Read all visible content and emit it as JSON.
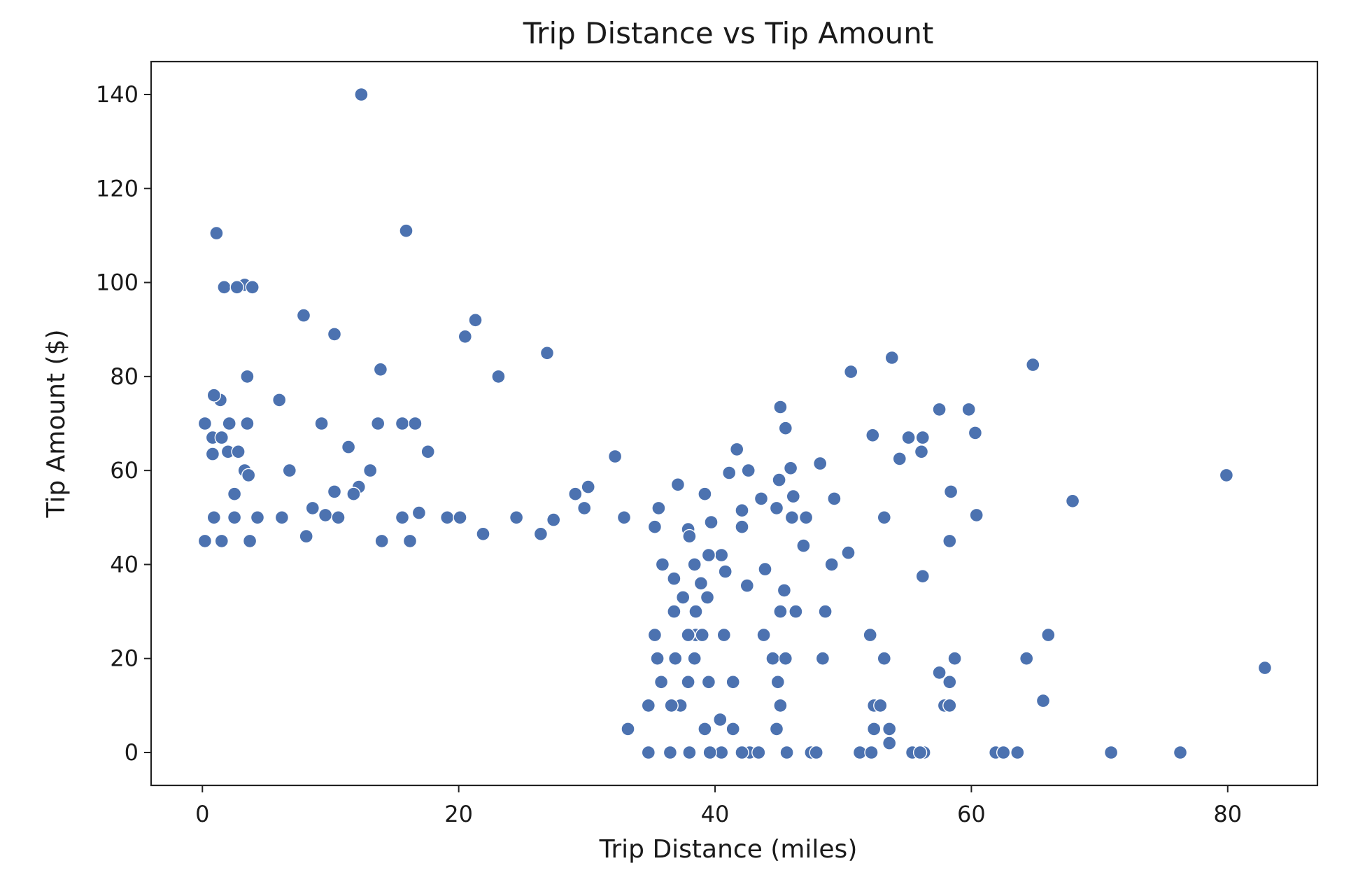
{
  "chart_data": {
    "type": "scatter",
    "title": "Trip Distance vs Tip Amount",
    "xlabel": "Trip Distance (miles)",
    "ylabel": "Tip Amount ($)",
    "xlim": [
      -4,
      87
    ],
    "ylim": [
      -7,
      147
    ],
    "x_ticks": [
      0,
      20,
      40,
      60,
      80
    ],
    "y_ticks": [
      0,
      20,
      40,
      60,
      80,
      100,
      120,
      140
    ],
    "grid": false,
    "legend": "none",
    "series": [
      {
        "color": "#4c72b0",
        "points": [
          [
            12.4,
            140
          ],
          [
            1.1,
            110.5
          ],
          [
            15.9,
            111
          ],
          [
            1.7,
            99
          ],
          [
            3.3,
            99.5
          ],
          [
            3.9,
            99
          ],
          [
            2.7,
            99
          ],
          [
            7.9,
            93
          ],
          [
            10.3,
            89
          ],
          [
            20.5,
            88.5
          ],
          [
            21.3,
            92
          ],
          [
            26.9,
            85
          ],
          [
            23.1,
            80
          ],
          [
            13.9,
            81.5
          ],
          [
            3.5,
            80
          ],
          [
            53.8,
            84
          ],
          [
            64.8,
            82.5
          ],
          [
            50.6,
            81
          ],
          [
            1.4,
            75
          ],
          [
            6.0,
            75
          ],
          [
            0.9,
            76
          ],
          [
            0.2,
            70
          ],
          [
            2.1,
            70
          ],
          [
            3.5,
            70
          ],
          [
            9.3,
            70
          ],
          [
            13.7,
            70
          ],
          [
            15.6,
            70
          ],
          [
            16.6,
            70
          ],
          [
            45.1,
            73.5
          ],
          [
            57.5,
            73
          ],
          [
            59.8,
            73
          ],
          [
            45.5,
            69
          ],
          [
            52.3,
            67.5
          ],
          [
            55.1,
            67
          ],
          [
            56.2,
            67
          ],
          [
            60.3,
            68
          ],
          [
            0.8,
            67
          ],
          [
            1.5,
            67
          ],
          [
            2.0,
            64
          ],
          [
            2.8,
            64
          ],
          [
            0.8,
            63.5
          ],
          [
            11.4,
            65
          ],
          [
            17.6,
            64
          ],
          [
            32.2,
            63
          ],
          [
            41.7,
            64.5
          ],
          [
            54.4,
            62.5
          ],
          [
            56.1,
            64
          ],
          [
            3.3,
            60
          ],
          [
            3.6,
            59
          ],
          [
            6.8,
            60
          ],
          [
            13.1,
            60
          ],
          [
            79.9,
            59
          ],
          [
            67.9,
            53.5
          ],
          [
            48.2,
            61.5
          ],
          [
            42.6,
            60
          ],
          [
            41.1,
            59.5
          ],
          [
            45.9,
            60.5
          ],
          [
            58.4,
            55.5
          ],
          [
            29.1,
            55
          ],
          [
            30.1,
            56.5
          ],
          [
            37.1,
            57
          ],
          [
            39.2,
            55
          ],
          [
            45.0,
            58
          ],
          [
            49.3,
            54
          ],
          [
            2.5,
            55
          ],
          [
            12.2,
            56.5
          ],
          [
            10.3,
            55.5
          ],
          [
            11.8,
            55
          ],
          [
            16.9,
            51
          ],
          [
            24.5,
            50
          ],
          [
            29.8,
            52
          ],
          [
            35.6,
            52
          ],
          [
            42.1,
            51.5
          ],
          [
            43.6,
            54
          ],
          [
            44.8,
            52
          ],
          [
            46.1,
            54.5
          ],
          [
            47.1,
            50
          ],
          [
            53.2,
            50
          ],
          [
            60.4,
            50.5
          ],
          [
            46.0,
            50
          ],
          [
            0.9,
            50
          ],
          [
            2.5,
            50
          ],
          [
            4.3,
            50
          ],
          [
            6.2,
            50
          ],
          [
            8.6,
            52
          ],
          [
            9.6,
            50.5
          ],
          [
            10.6,
            50
          ],
          [
            15.6,
            50
          ],
          [
            19.1,
            50
          ],
          [
            20.1,
            50
          ],
          [
            21.9,
            46.5
          ],
          [
            27.4,
            49.5
          ],
          [
            32.9,
            50
          ],
          [
            37.9,
            47.5
          ],
          [
            39.7,
            49
          ],
          [
            42.1,
            48
          ],
          [
            46.9,
            44
          ],
          [
            49.1,
            40
          ],
          [
            50.4,
            42.5
          ],
          [
            56.2,
            37.5
          ],
          [
            58.3,
            45
          ],
          [
            0.2,
            45
          ],
          [
            1.5,
            45
          ],
          [
            3.7,
            45
          ],
          [
            8.1,
            46
          ],
          [
            14.0,
            45
          ],
          [
            16.2,
            45
          ],
          [
            26.4,
            46.5
          ],
          [
            35.3,
            48
          ],
          [
            38.0,
            46
          ],
          [
            40.5,
            42
          ],
          [
            43.9,
            39
          ],
          [
            42.5,
            35.5
          ],
          [
            45.4,
            34.5
          ],
          [
            46.3,
            30
          ],
          [
            48.6,
            30
          ],
          [
            45.1,
            30
          ],
          [
            43.8,
            25
          ],
          [
            52.1,
            25
          ],
          [
            66.0,
            25
          ],
          [
            44.5,
            20
          ],
          [
            45.5,
            20
          ],
          [
            48.4,
            20
          ],
          [
            53.2,
            20
          ],
          [
            58.7,
            20
          ],
          [
            64.3,
            20
          ],
          [
            82.9,
            18
          ],
          [
            57.5,
            17
          ],
          [
            58.3,
            15
          ],
          [
            44.9,
            15
          ],
          [
            45.1,
            10
          ],
          [
            57.9,
            10
          ],
          [
            58.3,
            10
          ],
          [
            65.6,
            11
          ],
          [
            52.4,
            10
          ],
          [
            52.9,
            10
          ],
          [
            45.1,
            10
          ],
          [
            44.8,
            5
          ],
          [
            52.4,
            5
          ],
          [
            53.6,
            5
          ],
          [
            53.6,
            2
          ],
          [
            42.7,
            0
          ],
          [
            43.4,
            0
          ],
          [
            45.6,
            0
          ],
          [
            47.5,
            0
          ],
          [
            47.9,
            0
          ],
          [
            51.3,
            0
          ],
          [
            52.2,
            0
          ],
          [
            55.4,
            0
          ],
          [
            56.3,
            0
          ],
          [
            56.0,
            0
          ],
          [
            61.9,
            0
          ],
          [
            62.5,
            0
          ],
          [
            63.6,
            0
          ],
          [
            70.9,
            0
          ],
          [
            76.3,
            0
          ],
          [
            41.4,
            5
          ],
          [
            40.4,
            7
          ],
          [
            39.2,
            5
          ],
          [
            42.1,
            0
          ],
          [
            40.5,
            0
          ],
          [
            39.6,
            0
          ],
          [
            41.4,
            15
          ],
          [
            40.7,
            25
          ],
          [
            38.5,
            25
          ],
          [
            37.9,
            15
          ],
          [
            39.5,
            15
          ],
          [
            37.3,
            10
          ],
          [
            36.6,
            10
          ],
          [
            38.4,
            20
          ],
          [
            40.8,
            38.5
          ],
          [
            35.9,
            40
          ],
          [
            36.8,
            37
          ],
          [
            38.4,
            40
          ],
          [
            39.5,
            42
          ],
          [
            38.9,
            36
          ],
          [
            37.5,
            33
          ],
          [
            39.4,
            33
          ],
          [
            36.8,
            30
          ],
          [
            38.5,
            30
          ],
          [
            35.3,
            25
          ],
          [
            37.9,
            25
          ],
          [
            39.0,
            25
          ],
          [
            35.5,
            20
          ],
          [
            36.9,
            20
          ],
          [
            35.8,
            15
          ],
          [
            34.8,
            10
          ],
          [
            33.2,
            5
          ],
          [
            34.8,
            0
          ],
          [
            36.5,
            0
          ],
          [
            38.0,
            0
          ]
        ]
      }
    ]
  }
}
